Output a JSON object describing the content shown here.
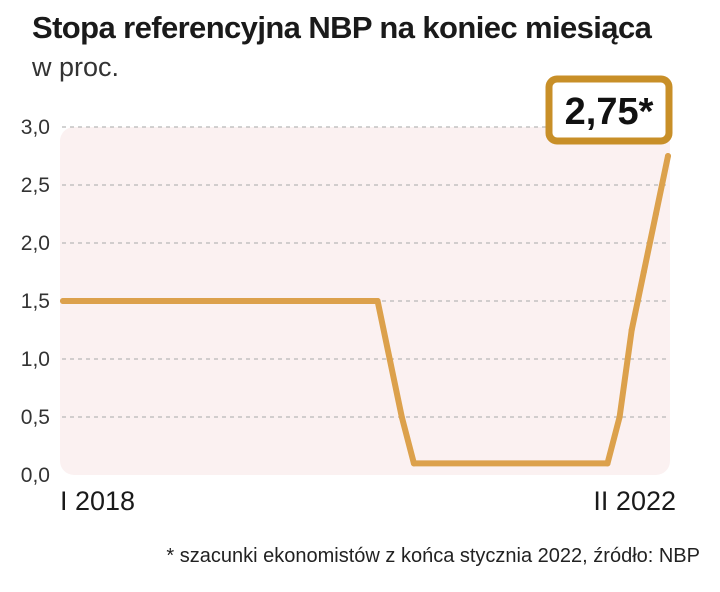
{
  "title": "Stopa referencyjna NBP na koniec miesiąca",
  "subtitle": "w proc.",
  "callout": "2,75*",
  "footnote": "* szacunki ekonomistów z końca stycznia 2022, źródło: NBP",
  "colors": {
    "line": "#dca14c",
    "callout_border": "#c88f28",
    "plot_bg": "#fbf1f1",
    "grid": "#b8b8b8"
  },
  "chart_data": {
    "type": "line",
    "title": "Stopa referencyjna NBP na koniec miesiąca",
    "ylabel": "w proc.",
    "xlabel": "",
    "x_tick_labels": [
      "I 2018",
      "II 2022"
    ],
    "x_range": [
      "2018-01",
      "2022-02"
    ],
    "ylim": [
      0,
      3.0
    ],
    "y_ticks": [
      {
        "value": 0,
        "label": "0,0"
      },
      {
        "value": 0.5,
        "label": "0,5"
      },
      {
        "value": 1.0,
        "label": "1,0"
      },
      {
        "value": 1.5,
        "label": "1,5"
      },
      {
        "value": 2.0,
        "label": "2,0"
      },
      {
        "value": 2.5,
        "label": "2,5"
      },
      {
        "value": 3.0,
        "label": "3,0"
      }
    ],
    "grid": true,
    "series": [
      {
        "name": "Stopa referencyjna NBP",
        "points": [
          {
            "x": 0,
            "y": 1.5
          },
          {
            "x": 26,
            "y": 1.5
          },
          {
            "x": 27,
            "y": 1.0
          },
          {
            "x": 28,
            "y": 0.5
          },
          {
            "x": 29,
            "y": 0.1
          },
          {
            "x": 45,
            "y": 0.1
          },
          {
            "x": 46,
            "y": 0.5
          },
          {
            "x": 47,
            "y": 1.25
          },
          {
            "x": 48,
            "y": 1.75
          },
          {
            "x": 49,
            "y": 2.25
          },
          {
            "x": 50,
            "y": 2.75
          }
        ]
      }
    ],
    "annotation": {
      "text": "2,75*",
      "target_index": 50
    }
  }
}
